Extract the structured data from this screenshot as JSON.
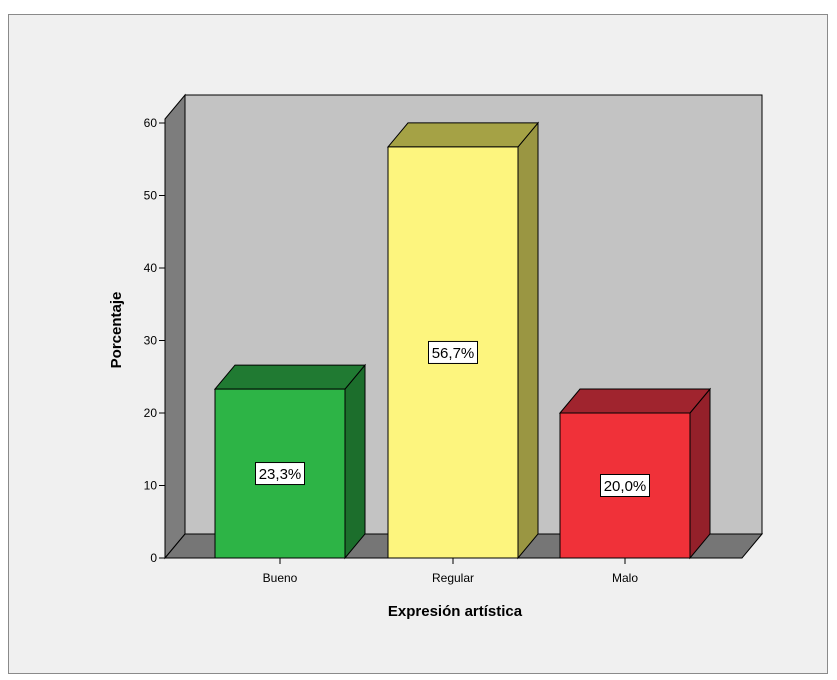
{
  "chart_data": {
    "type": "bar",
    "title": "",
    "xlabel": "Expresión artística",
    "ylabel": "Porcentaje",
    "categories": [
      "Bueno",
      "Regular",
      "Malo"
    ],
    "values": [
      23.3,
      56.7,
      20.0
    ],
    "data_labels": [
      "23,3%",
      "56,7%",
      "20,0%"
    ],
    "ylim": [
      0,
      60
    ],
    "yticks": [
      0,
      10,
      20,
      30,
      40,
      50,
      60
    ],
    "grid": false,
    "legend": "none",
    "colors": {
      "bar_fronts": [
        "#2db446",
        "#fdf57e",
        "#f03139"
      ],
      "bar_sides": [
        "#1c6e2c",
        "#9a9642",
        "#94202a"
      ],
      "bar_tops": [
        "#207a32",
        "#a5a245",
        "#a0242e"
      ],
      "back_wall": "#c3c3c3",
      "side_wall": "#7d7d7d",
      "floor": "#767676",
      "frame_background": "#f0f0f0"
    }
  }
}
